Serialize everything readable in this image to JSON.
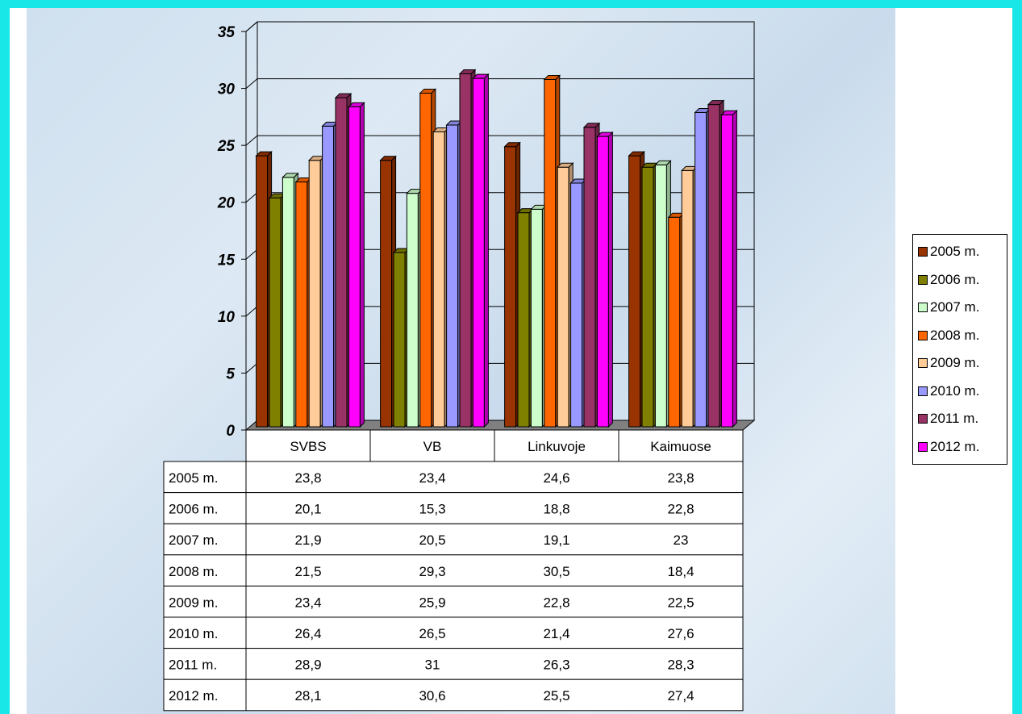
{
  "chart_data": {
    "type": "bar",
    "categories": [
      "SVBS",
      "VB",
      "Linkuvoje",
      "Kaimuose"
    ],
    "series": [
      {
        "name": "2005 m.",
        "color": "#993300",
        "values": [
          23.8,
          23.4,
          24.6,
          23.8
        ],
        "labels": [
          "23,8",
          "23,4",
          "24,6",
          "23,8"
        ]
      },
      {
        "name": "2006 m.",
        "color": "#808000",
        "values": [
          20.1,
          15.3,
          18.8,
          22.8
        ],
        "labels": [
          "20,1",
          "15,3",
          "18,8",
          "22,8"
        ]
      },
      {
        "name": "2007 m.",
        "color": "#ccffcc",
        "values": [
          21.9,
          20.5,
          19.1,
          23
        ],
        "labels": [
          "21,9",
          "20,5",
          "19,1",
          "23"
        ]
      },
      {
        "name": "2008 m.",
        "color": "#ff6600",
        "values": [
          21.5,
          29.3,
          30.5,
          18.4
        ],
        "labels": [
          "21,5",
          "29,3",
          "30,5",
          "18,4"
        ]
      },
      {
        "name": "2009 m.",
        "color": "#ffcc99",
        "values": [
          23.4,
          25.9,
          22.8,
          22.5
        ],
        "labels": [
          "23,4",
          "25,9",
          "22,8",
          "22,5"
        ]
      },
      {
        "name": "2010 m.",
        "color": "#9999ff",
        "values": [
          26.4,
          26.5,
          21.4,
          27.6
        ],
        "labels": [
          "26,4",
          "26,5",
          "21,4",
          "27,6"
        ]
      },
      {
        "name": "2011 m.",
        "color": "#993366",
        "values": [
          28.9,
          31,
          26.3,
          28.3
        ],
        "labels": [
          "28,9",
          "31",
          "26,3",
          "28,3"
        ]
      },
      {
        "name": "2012 m.",
        "color": "#ff00ff",
        "values": [
          28.1,
          30.6,
          25.5,
          27.4
        ],
        "labels": [
          "28,1",
          "30,6",
          "25,5",
          "27,4"
        ]
      }
    ],
    "yticks": [
      "0",
      "5",
      "10",
      "15",
      "20",
      "25",
      "30",
      "35"
    ],
    "ylim": [
      0,
      35
    ],
    "grid": true,
    "legend_position": "right",
    "data_table": true
  }
}
